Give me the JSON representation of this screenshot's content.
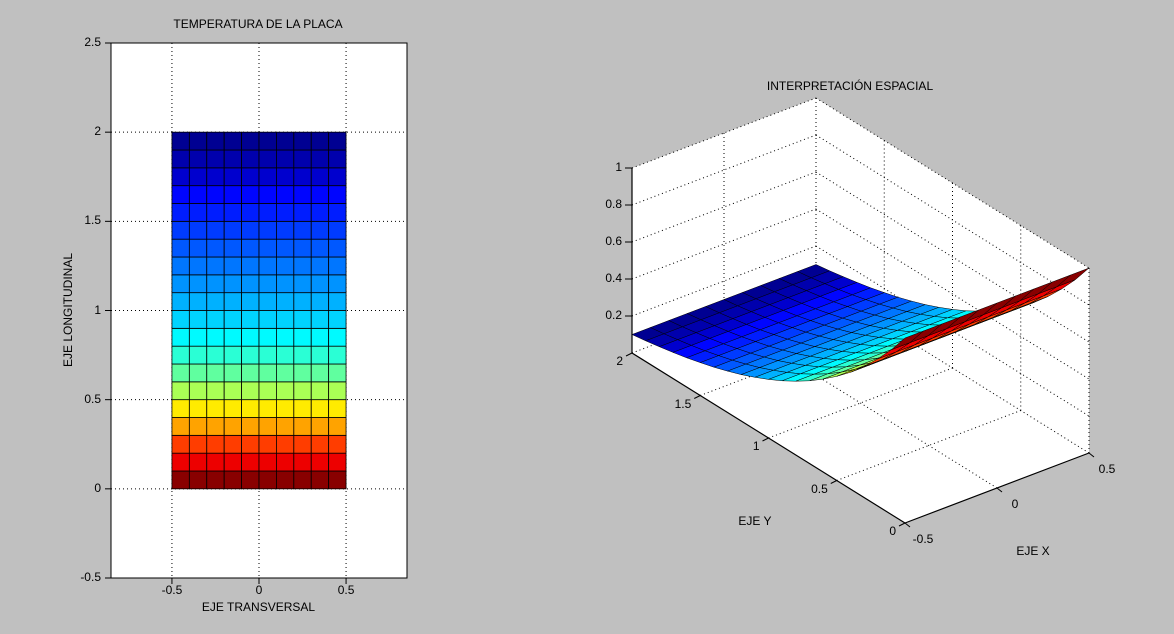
{
  "figure": {
    "bg_color": "#c0c0c0",
    "axes_bg": "#ffffff",
    "line_color": "#000000",
    "grid_style": "dotted"
  },
  "chart_data": [
    {
      "type": "heatmap",
      "title": "TEMPERATURA DE LA PLACA",
      "xlabel": "EJE TRANSVERSAL",
      "ylabel": "EJE LONGITUDINAL",
      "xlim": [
        -0.85,
        0.85
      ],
      "ylim": [
        -0.5,
        2.5
      ],
      "x_ticks": [
        -0.5,
        0,
        0.5
      ],
      "y_ticks": [
        -0.5,
        0,
        0.5,
        1,
        1.5,
        2,
        2.5
      ],
      "grid": "dotted",
      "colormap": "jet",
      "mesh": {
        "x_min": -0.5,
        "x_max": 0.5,
        "n_cols": 10,
        "y_min": 0,
        "y_max": 2,
        "n_rows": 20
      },
      "row_color_values": [
        0.99,
        0.88,
        0.8,
        0.7,
        0.63,
        0.53,
        0.46,
        0.41,
        0.365,
        0.325,
        0.29,
        0.26,
        0.23,
        0.2,
        0.17,
        0.14,
        0.115,
        0.065,
        0.035,
        0.01
      ],
      "value_note": "normalized temperature per row, bottom (y=0, hot/red) to top (y=2, cold/blue)"
    },
    {
      "type": "surface3d",
      "title": "INTERPRETACIÓN ESPACIAL",
      "xlabel": "EJE X",
      "ylabel": "EJE Y",
      "zlabel": "",
      "xlim": [
        -0.5,
        0.5
      ],
      "ylim": [
        0,
        2
      ],
      "zlim": [
        0,
        1
      ],
      "x_ticks": [
        -0.5,
        0,
        0.5
      ],
      "y_ticks": [
        0,
        0.5,
        1,
        1.5,
        2
      ],
      "z_ticks": [
        0.2,
        0.4,
        0.6,
        0.8,
        1
      ],
      "grid": "dotted",
      "colormap": "jet",
      "surface": {
        "x_min": -0.5,
        "x_max": 0.5,
        "n_cols": 10,
        "y_min": 0,
        "y_max": 2,
        "n_rows": 20,
        "height_profile": [
          1.0,
          0.891,
          0.795,
          0.708,
          0.631,
          0.563,
          0.502,
          0.447,
          0.399,
          0.355,
          0.317,
          0.282,
          0.251,
          0.224,
          0.199,
          0.178,
          0.158,
          0.141,
          0.126,
          0.112,
          0.1
        ],
        "row_color_values": [
          0.99,
          0.88,
          0.8,
          0.7,
          0.63,
          0.53,
          0.46,
          0.41,
          0.365,
          0.325,
          0.29,
          0.26,
          0.23,
          0.2,
          0.17,
          0.14,
          0.115,
          0.065,
          0.035,
          0.01
        ]
      },
      "height_note": "surface height vs y (21 nodes, y=0..2); constant along x; peaks at 1 on y=0 edge"
    }
  ]
}
